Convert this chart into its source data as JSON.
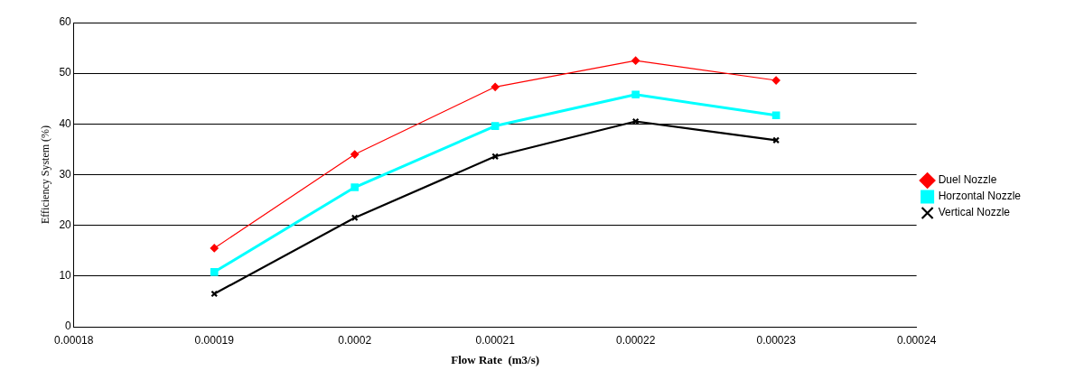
{
  "chart_data": {
    "type": "line",
    "xlabel": "Flow Rate  (m3/s)",
    "ylabel": "Efficiency System (%)",
    "x": [
      0.00019,
      0.0002,
      0.00021,
      0.00022,
      0.00023
    ],
    "series": [
      {
        "name": "Duel Nozzle",
        "color": "#ff0000",
        "marker": "diamond",
        "values": [
          15.5,
          34,
          47.3,
          52.5,
          48.6
        ]
      },
      {
        "name": "Horzontal Nozzle",
        "color": "#00ffff",
        "marker": "square",
        "values": [
          10.8,
          27.5,
          39.6,
          45.8,
          41.7
        ]
      },
      {
        "name": "Vertical Nozzle",
        "color": "#000000",
        "marker": "cross",
        "values": [
          6.5,
          21.5,
          33.6,
          40.5,
          36.8
        ]
      }
    ],
    "xlim": [
      0.00018,
      0.00024
    ],
    "xticks": [
      0.00018,
      0.00019,
      0.0002,
      0.00021,
      0.00022,
      0.00023,
      0.00024
    ],
    "ylim": [
      0,
      60
    ],
    "yticks": [
      0,
      10,
      20,
      30,
      40,
      50,
      60
    ],
    "grid": "y",
    "legend": "right",
    "line_style": "solid"
  }
}
